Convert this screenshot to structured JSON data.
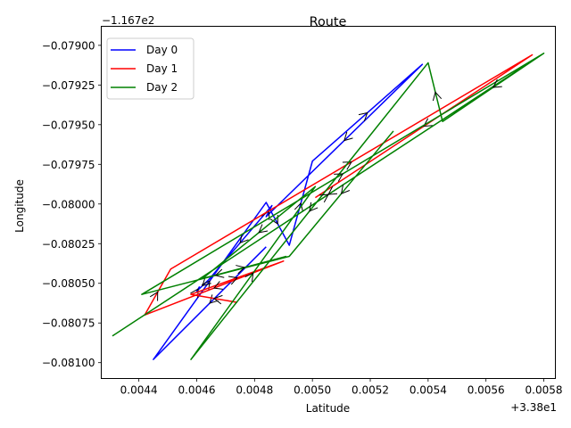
{
  "chart_data": {
    "type": "line",
    "title": "Route",
    "xlabel": "Latitude",
    "ylabel": "Longitude",
    "x_offset_label": "+3.38e1",
    "y_offset_label": "−1.167e2",
    "xlim": [
      0.00427,
      0.00584
    ],
    "ylim": [
      -0.0811,
      -0.07888
    ],
    "xticks": [
      0.0044,
      0.0046,
      0.0048,
      0.005,
      0.0052,
      0.0054,
      0.0056,
      0.0058
    ],
    "xtick_labels": [
      "0.0044",
      "0.0046",
      "0.0048",
      "0.0050",
      "0.0052",
      "0.0054",
      "0.0056",
      "0.0058"
    ],
    "yticks": [
      -0.079,
      -0.07925,
      -0.0795,
      -0.07975,
      -0.08,
      -0.08025,
      -0.0805,
      -0.08075,
      -0.081
    ],
    "ytick_labels": [
      "−0.07900",
      "−0.07925",
      "−0.07950",
      "−0.07975",
      "−0.08000",
      "−0.08025",
      "−0.08050",
      "−0.08075",
      "−0.08100"
    ],
    "legend_position": "top-left",
    "grid": false,
    "series": [
      {
        "name": "Day 0",
        "color": "#0000ff",
        "x": [
          0.00484,
          0.00445,
          0.00484,
          0.00492,
          0.005,
          0.00538,
          0.00484,
          0.00486,
          0.00464,
          0.0046,
          0.00461
        ],
        "y": [
          -0.08027,
          -0.08098,
          -0.07999,
          -0.08026,
          -0.07973,
          -0.07912,
          -0.08008,
          -0.08001,
          -0.08048,
          -0.08055,
          -0.08052
        ]
      },
      {
        "name": "Day 1",
        "color": "#ff0000",
        "x": [
          0.00474,
          0.00458,
          0.0049,
          0.00442,
          0.00451,
          0.00576,
          0.00501
        ],
        "y": [
          -0.08062,
          -0.08057,
          -0.08036,
          -0.0807,
          -0.08041,
          -0.07906,
          -0.07996
        ]
      },
      {
        "name": "Day 2",
        "color": "#008000",
        "x": [
          0.00528,
          0.00492,
          0.00441,
          0.0058,
          0.00431,
          0.0058,
          0.00545,
          0.0054,
          0.00458,
          0.00501,
          0.00462,
          0.00491
        ],
        "y": [
          -0.07954,
          -0.08033,
          -0.08057,
          -0.07905,
          -0.08083,
          -0.07905,
          -0.07948,
          -0.07911,
          -0.08098,
          -0.07989,
          -0.08047,
          -0.08033
        ]
      }
    ]
  }
}
